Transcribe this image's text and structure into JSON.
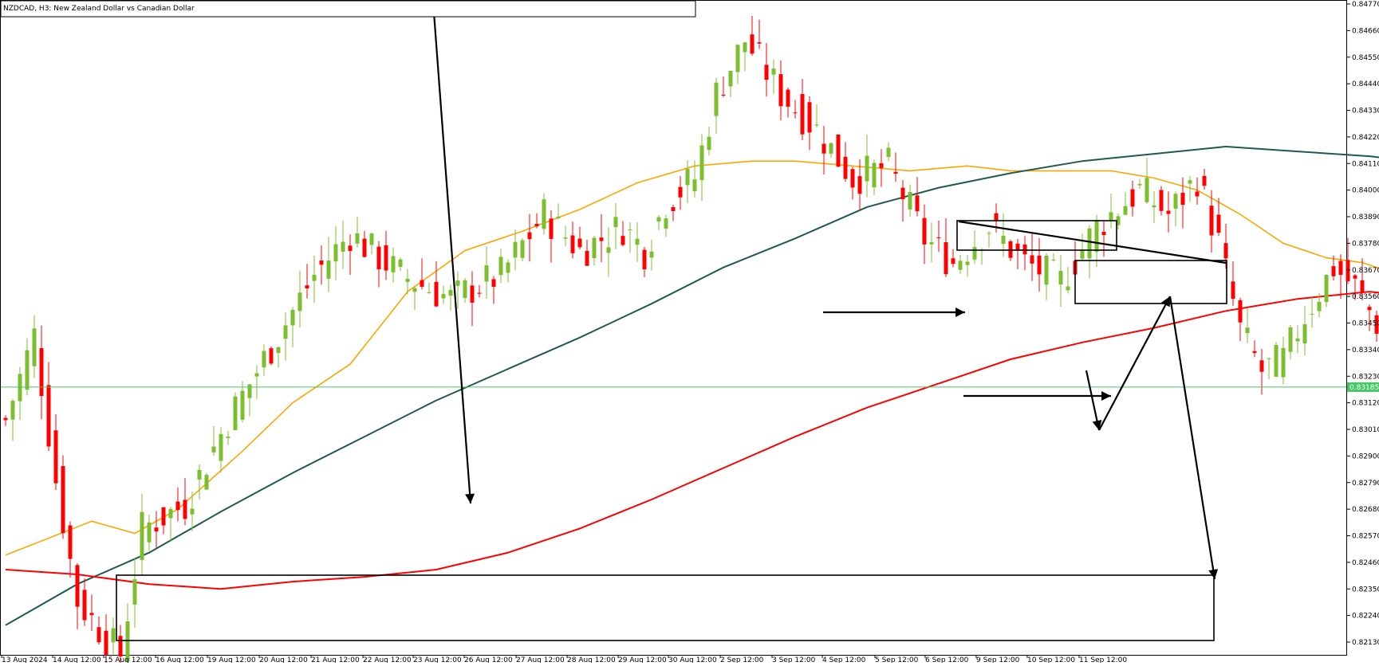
{
  "chart_data": {
    "type": "candlestick",
    "title": "NZDCAD, H3:  New Zealand Dollar vs Canadian Dollar",
    "symbol": "NZDCAD",
    "timeframe": "H3",
    "description": "New Zealand Dollar vs Canadian Dollar",
    "ylim": [
      0.8208,
      0.8478
    ],
    "y_ticks": [
      "0.84770",
      "0.84660",
      "0.84550",
      "0.84440",
      "0.84330",
      "0.84220",
      "0.84110",
      "0.84000",
      "0.83890",
      "0.83780",
      "0.83670",
      "0.83560",
      "0.83450",
      "0.83340",
      "0.83230",
      "0.83120",
      "0.83010",
      "0.82900",
      "0.82790",
      "0.82680",
      "0.82570",
      "0.82460",
      "0.82350",
      "0.82240",
      "0.82130"
    ],
    "x_ticks": [
      "13 Aug 2024",
      "14 Aug 12:00",
      "15 Aug 12:00",
      "16 Aug 12:00",
      "19 Aug 12:00",
      "20 Aug 12:00",
      "21 Aug 12:00",
      "22 Aug 12:00",
      "23 Aug 12:00",
      "26 Aug 12:00",
      "27 Aug 12:00",
      "28 Aug 12:00",
      "29 Aug 12:00",
      "30 Aug 12:00",
      "2 Sep 12:00",
      "3 Sep 12:00",
      "4 Sep 12:00",
      "5 Sep 12:00",
      "6 Sep 12:00",
      "9 Sep 12:00",
      "10 Sep 12:00",
      "11 Sep 12:00"
    ],
    "current_price": "0.83185",
    "candle_colors": {
      "up": "#7cbf2e",
      "down": "#ff0000"
    },
    "grid": false,
    "anchors": [
      {
        "bar": 0,
        "price": 0.8305
      },
      {
        "bar": 4,
        "price": 0.834
      },
      {
        "bar": 7,
        "price": 0.828
      },
      {
        "bar": 10,
        "price": 0.823
      },
      {
        "bar": 14,
        "price": 0.8215
      },
      {
        "bar": 16,
        "price": 0.8208
      },
      {
        "bar": 19,
        "price": 0.826
      },
      {
        "bar": 25,
        "price": 0.827
      },
      {
        "bar": 31,
        "price": 0.8305
      },
      {
        "bar": 37,
        "price": 0.8335
      },
      {
        "bar": 43,
        "price": 0.8365
      },
      {
        "bar": 48,
        "price": 0.8382
      },
      {
        "bar": 55,
        "price": 0.8365
      },
      {
        "bar": 62,
        "price": 0.8355
      },
      {
        "bar": 69,
        "price": 0.8365
      },
      {
        "bar": 75,
        "price": 0.839
      },
      {
        "bar": 80,
        "price": 0.8375
      },
      {
        "bar": 86,
        "price": 0.8385
      },
      {
        "bar": 89,
        "price": 0.8375
      },
      {
        "bar": 92,
        "price": 0.8395
      },
      {
        "bar": 96,
        "price": 0.8405
      },
      {
        "bar": 99,
        "price": 0.844
      },
      {
        "bar": 103,
        "price": 0.8462
      },
      {
        "bar": 108,
        "price": 0.844
      },
      {
        "bar": 113,
        "price": 0.8425
      },
      {
        "bar": 118,
        "price": 0.8405
      },
      {
        "bar": 123,
        "price": 0.841
      },
      {
        "bar": 128,
        "price": 0.838
      },
      {
        "bar": 132,
        "price": 0.837
      },
      {
        "bar": 137,
        "price": 0.8385
      },
      {
        "bar": 142,
        "price": 0.837
      },
      {
        "bar": 147,
        "price": 0.8362
      },
      {
        "bar": 152,
        "price": 0.8385
      },
      {
        "bar": 158,
        "price": 0.84
      },
      {
        "bar": 162,
        "price": 0.839
      },
      {
        "bar": 166,
        "price": 0.8405
      },
      {
        "bar": 169,
        "price": 0.8378
      },
      {
        "bar": 172,
        "price": 0.8342
      },
      {
        "bar": 175,
        "price": 0.8325
      },
      {
        "bar": 178,
        "price": 0.833
      },
      {
        "bar": 181,
        "price": 0.8348
      },
      {
        "bar": 185,
        "price": 0.8368
      },
      {
        "bar": 188,
        "price": 0.836
      },
      {
        "bar": 191,
        "price": 0.8345
      },
      {
        "bar": 192,
        "price": 0.832
      }
    ],
    "moving_averages": [
      {
        "color": "#ffa500",
        "points": [
          [
            0,
            0.8249
          ],
          [
            12,
            0.8263
          ],
          [
            18,
            0.8258
          ],
          [
            24,
            0.8268
          ],
          [
            33,
            0.8292
          ],
          [
            40,
            0.8312
          ],
          [
            48,
            0.8328
          ],
          [
            56,
            0.8358
          ],
          [
            64,
            0.8375
          ],
          [
            72,
            0.8383
          ],
          [
            80,
            0.8392
          ],
          [
            88,
            0.8403
          ],
          [
            96,
            0.841
          ],
          [
            104,
            0.8412
          ],
          [
            110,
            0.8412
          ],
          [
            118,
            0.841
          ],
          [
            126,
            0.8408
          ],
          [
            134,
            0.841
          ],
          [
            140,
            0.8408
          ],
          [
            148,
            0.8408
          ],
          [
            154,
            0.8408
          ],
          [
            160,
            0.8405
          ],
          [
            166,
            0.84
          ],
          [
            172,
            0.839
          ],
          [
            178,
            0.8378
          ],
          [
            184,
            0.8372
          ],
          [
            189,
            0.837
          ],
          [
            193,
            0.8366
          ]
        ]
      },
      {
        "color": "#1f5a4f",
        "points": [
          [
            0,
            0.822
          ],
          [
            10,
            0.8237
          ],
          [
            20,
            0.825
          ],
          [
            30,
            0.8267
          ],
          [
            40,
            0.8283
          ],
          [
            50,
            0.8298
          ],
          [
            60,
            0.8313
          ],
          [
            70,
            0.8326
          ],
          [
            80,
            0.8339
          ],
          [
            90,
            0.8353
          ],
          [
            100,
            0.8368
          ],
          [
            110,
            0.838
          ],
          [
            120,
            0.8393
          ],
          [
            130,
            0.8401
          ],
          [
            140,
            0.8407
          ],
          [
            150,
            0.8412
          ],
          [
            160,
            0.8415
          ],
          [
            170,
            0.8418
          ],
          [
            180,
            0.8416
          ],
          [
            190,
            0.8414
          ],
          [
            193,
            0.8413
          ]
        ]
      },
      {
        "color": "#ff0000",
        "points": [
          [
            0,
            0.8243
          ],
          [
            10,
            0.8241
          ],
          [
            20,
            0.8237
          ],
          [
            30,
            0.8235
          ],
          [
            40,
            0.8238
          ],
          [
            50,
            0.824
          ],
          [
            60,
            0.8243
          ],
          [
            70,
            0.825
          ],
          [
            80,
            0.826
          ],
          [
            90,
            0.8272
          ],
          [
            100,
            0.8285
          ],
          [
            110,
            0.8298
          ],
          [
            120,
            0.831
          ],
          [
            130,
            0.832
          ],
          [
            140,
            0.833
          ],
          [
            150,
            0.8337
          ],
          [
            160,
            0.8343
          ],
          [
            170,
            0.835
          ],
          [
            180,
            0.8355
          ],
          [
            190,
            0.8358
          ],
          [
            193,
            0.8357
          ]
        ]
      }
    ],
    "annotation_color": "#000000",
    "current_line_color": "#46c864"
  }
}
